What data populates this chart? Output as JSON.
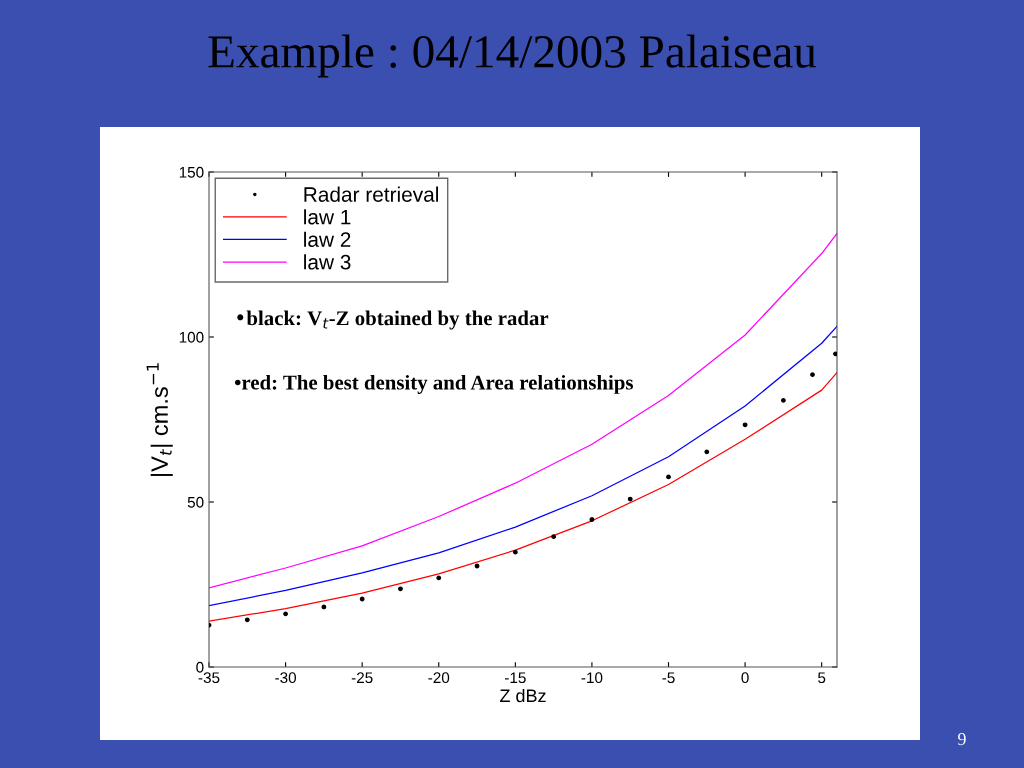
{
  "chart_data": {
    "type": "line",
    "title": "Example : 04/14/2003 Palaiseau",
    "xlabel": "Z dBz",
    "ylabel": "|V$_{t}$| cm.s$^{−1}$",
    "annotations": [
      "•black: V$_{t}$-Z obtained by the radar",
      "•red: The best density and Area relationships",
      "9"
    ],
    "xlim": [
      -35,
      6
    ],
    "xticks": [
      -35,
      -30,
      -25,
      -20,
      -15,
      -10,
      -5,
      0,
      5
    ],
    "ylim": [
      0,
      150
    ],
    "yticks": [
      0,
      50,
      100,
      150
    ],
    "grid": false,
    "legend": "top left",
    "series": [
      {
        "name": "Radar retrieval",
        "type": "scatter",
        "marker": "circle",
        "color": "#000000",
        "x": [
          -35,
          -32.5,
          -30,
          -27.5,
          -25,
          -22.5,
          -20,
          -17.5,
          -15,
          -12.5,
          -10,
          -7.5,
          -5,
          -2.5,
          0,
          2.5,
          4.4,
          5.9
        ],
        "values": [
          12.7,
          14.3,
          16.1,
          18.2,
          20.6,
          23.7,
          27,
          30.6,
          34.8,
          39.5,
          44.7,
          50.9,
          57.6,
          65.2,
          73.4,
          80.8,
          88.6,
          94.9
        ]
      },
      {
        "name": "law 1",
        "color": "#ff0000",
        "x": [
          -35,
          -30,
          -25,
          -20,
          -15,
          -10,
          -5,
          0,
          5,
          6
        ],
        "values": [
          13.9,
          17.7,
          22.4,
          28.2,
          35.4,
          44.3,
          55.3,
          69,
          83.9,
          89.2
        ]
      },
      {
        "name": "law 2",
        "color": "#0000ff",
        "x": [
          -35,
          -30,
          -25,
          -20,
          -15,
          -10,
          -5,
          0,
          5,
          6
        ],
        "values": [
          18.6,
          23.2,
          28.5,
          34.6,
          42.4,
          51.9,
          63.7,
          79.1,
          98.1,
          103.2
        ]
      },
      {
        "name": "law 3",
        "color": "#ff00ff",
        "x": [
          -35,
          -30,
          -25,
          -20,
          -15,
          -10,
          -5,
          0,
          5,
          6
        ],
        "values": [
          24,
          30,
          36.7,
          45.6,
          55.7,
          67.5,
          82.3,
          100.6,
          125.3,
          131.4
        ]
      }
    ]
  }
}
